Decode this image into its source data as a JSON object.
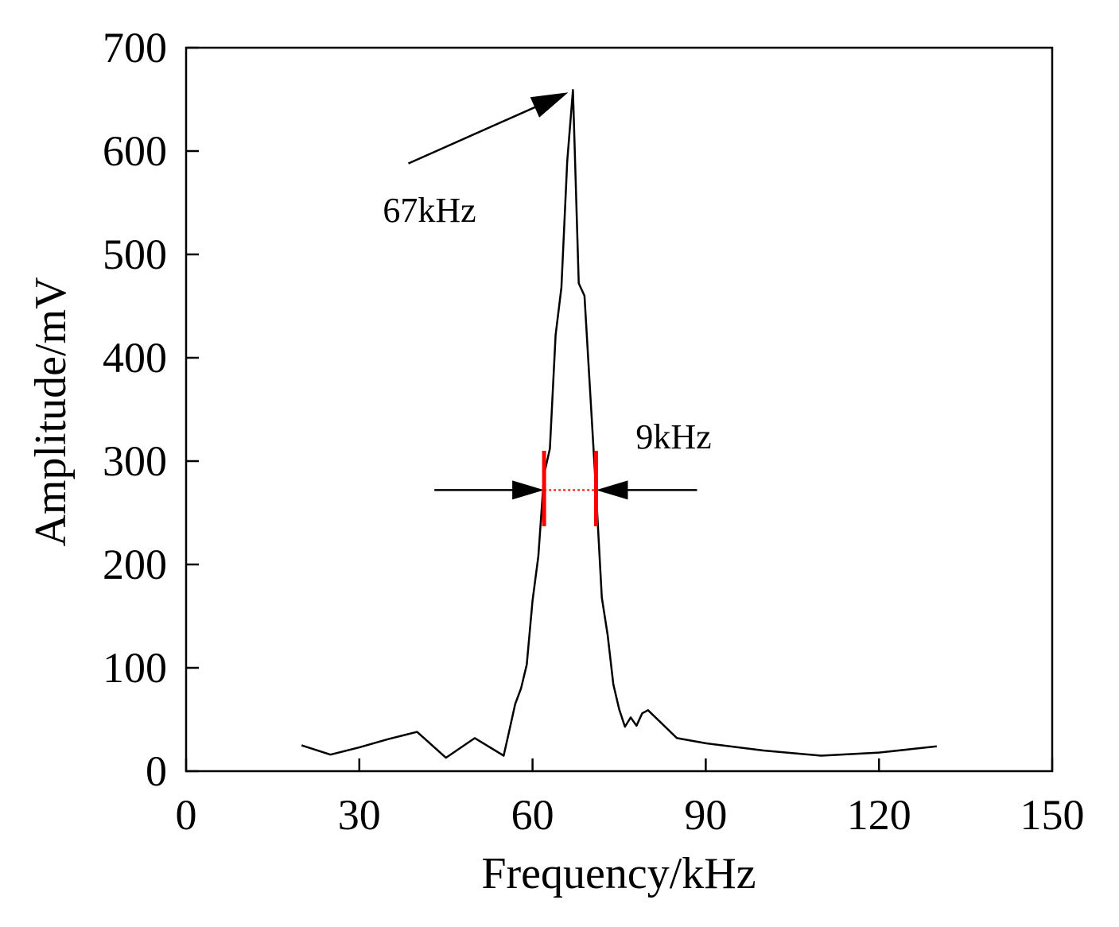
{
  "chart_data": {
    "type": "line",
    "title": "",
    "xlabel": "Frequency/kHz",
    "ylabel": "Amplitude/mV",
    "xlim": [
      0,
      150
    ],
    "ylim": [
      0,
      700
    ],
    "xticks": [
      0,
      30,
      60,
      90,
      120,
      150
    ],
    "yticks": [
      0,
      100,
      200,
      300,
      400,
      500,
      600,
      700
    ],
    "grid": false,
    "series": [
      {
        "name": "amplitude",
        "color": "#000000",
        "x": [
          20,
          25,
          30,
          35,
          40,
          45,
          50,
          55,
          56,
          57,
          58,
          59,
          60,
          61,
          62,
          63,
          64,
          65,
          66,
          67,
          68,
          69,
          70,
          71,
          72,
          73,
          74,
          75,
          76,
          77,
          78,
          79,
          80,
          85,
          90,
          100,
          110,
          120,
          130
        ],
        "y": [
          25,
          16,
          23,
          31,
          38,
          13,
          32,
          15,
          40,
          65,
          80,
          103,
          165,
          208,
          287,
          312,
          422,
          468,
          590,
          659,
          472,
          460,
          365,
          270,
          168,
          132,
          84,
          60,
          43,
          52,
          44,
          56,
          59,
          32,
          27,
          20,
          15,
          18,
          24
        ]
      }
    ],
    "annotations": [
      {
        "text": "67kHz",
        "points_to": {
          "x": 67,
          "y": 659
        },
        "arrow_from": {
          "x": 38.5,
          "y": 588
        }
      },
      {
        "text": "9kHz",
        "bandwidth": [
          62,
          71
        ],
        "level": 272,
        "arrow_from_left": 43,
        "arrow_from_right": 88.5,
        "marker_span": [
          237,
          310
        ],
        "marker_color": "#ff0000"
      }
    ]
  }
}
